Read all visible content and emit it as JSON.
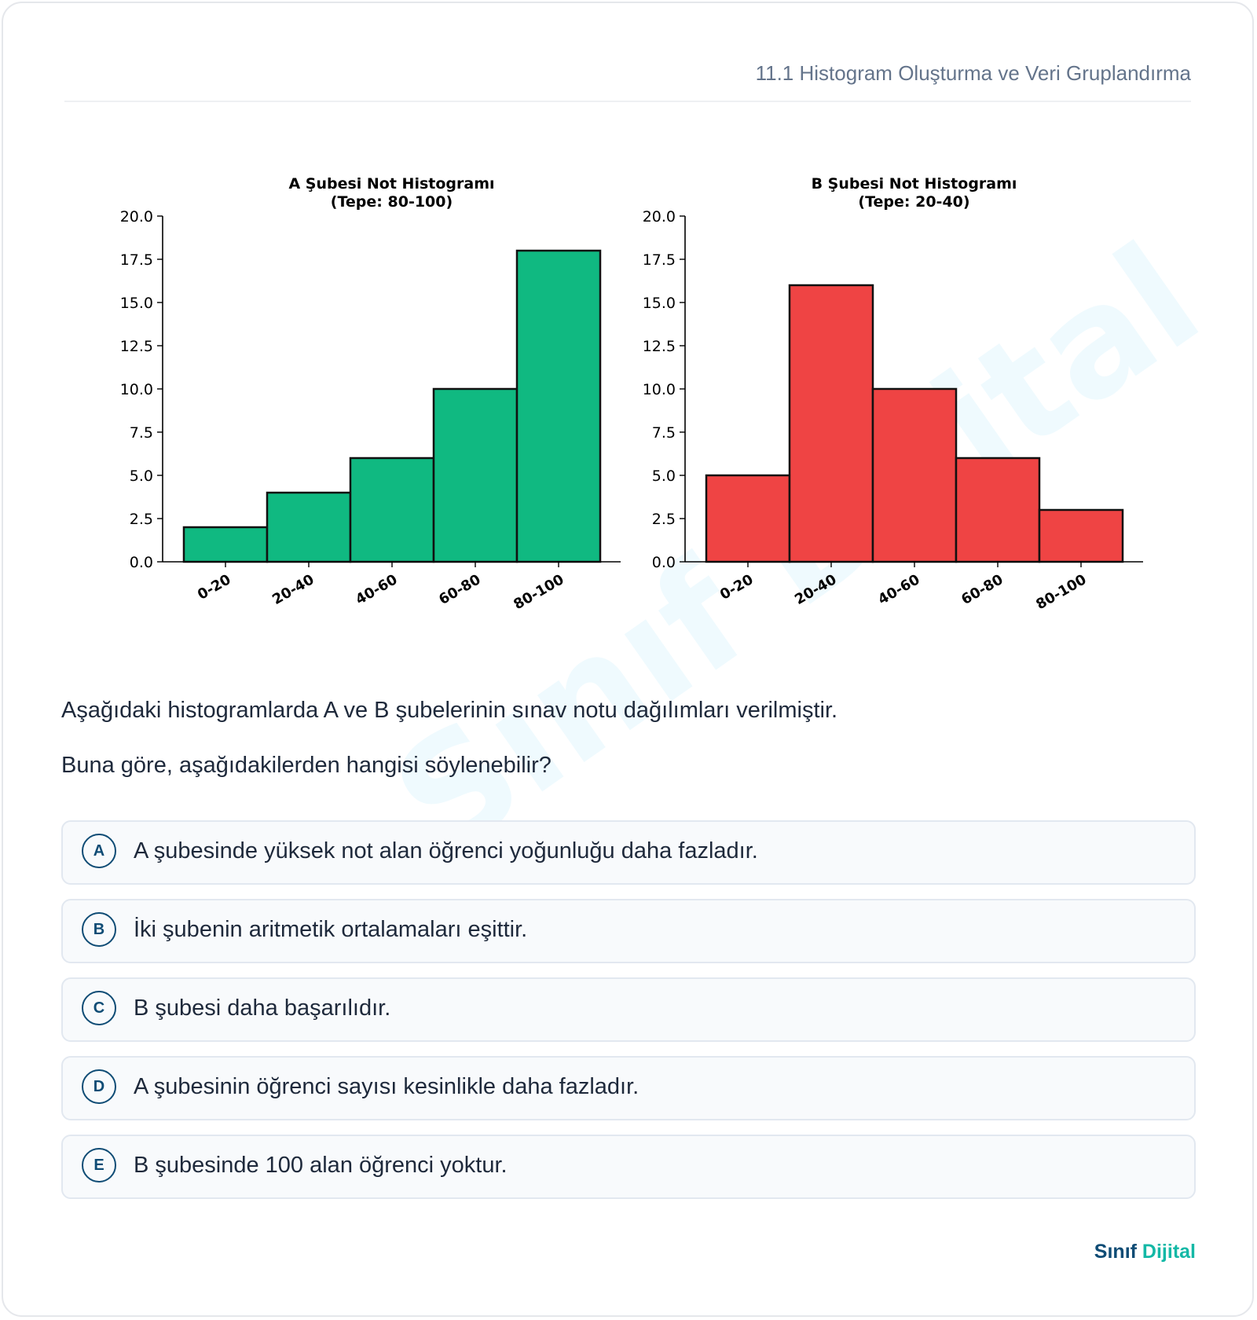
{
  "header": {
    "breadcrumb": "11.1 Histogram Oluşturma ve Veri Gruplandırma"
  },
  "watermark": "Sınıf Dijital",
  "chart_data": [
    {
      "type": "bar",
      "title": "A Şubesi Not Histogramı\n(Tepe: 80-100)",
      "title_lines": [
        "A Şubesi Not Histogramı",
        "(Tepe: 80-100)"
      ],
      "categories": [
        "0-20",
        "20-40",
        "40-60",
        "60-80",
        "80-100"
      ],
      "values": [
        2,
        4,
        6,
        10,
        18
      ],
      "ylim": [
        0,
        20
      ],
      "yticks": [
        "0.0",
        "2.5",
        "5.0",
        "7.5",
        "10.0",
        "12.5",
        "15.0",
        "17.5",
        "20.0"
      ],
      "color": "#10b981",
      "grid": false
    },
    {
      "type": "bar",
      "title": "B Şubesi Not Histogramı\n(Tepe: 20-40)",
      "title_lines": [
        "B Şubesi Not Histogramı",
        "(Tepe: 20-40)"
      ],
      "categories": [
        "0-20",
        "20-40",
        "40-60",
        "60-80",
        "80-100"
      ],
      "values": [
        5,
        16,
        10,
        6,
        3
      ],
      "ylim": [
        0,
        20
      ],
      "yticks": [
        "0.0",
        "2.5",
        "5.0",
        "7.5",
        "10.0",
        "12.5",
        "15.0",
        "17.5",
        "20.0"
      ],
      "color": "#ef4444",
      "grid": false
    }
  ],
  "question": {
    "intro": "Aşağıdaki histogramlarda A ve B şubelerinin sınav notu dağılımları verilmiştir.",
    "prompt": "Buna göre, aşağıdakilerden hangisi söylenebilir?"
  },
  "options": [
    {
      "letter": "A",
      "text": "A şubesinde yüksek not alan öğrenci yoğunluğu daha fazladır."
    },
    {
      "letter": "B",
      "text": "İki şubenin aritmetik ortalamaları eşittir."
    },
    {
      "letter": "C",
      "text": "B şubesi daha başarılıdır."
    },
    {
      "letter": "D",
      "text": "A şubesinin öğrenci sayısı kesinlikle daha fazladır."
    },
    {
      "letter": "E",
      "text": "B şubesinde 100 alan öğrenci yoktur."
    }
  ],
  "brand": {
    "part1": "Sınıf",
    "part2": "Dijital"
  }
}
